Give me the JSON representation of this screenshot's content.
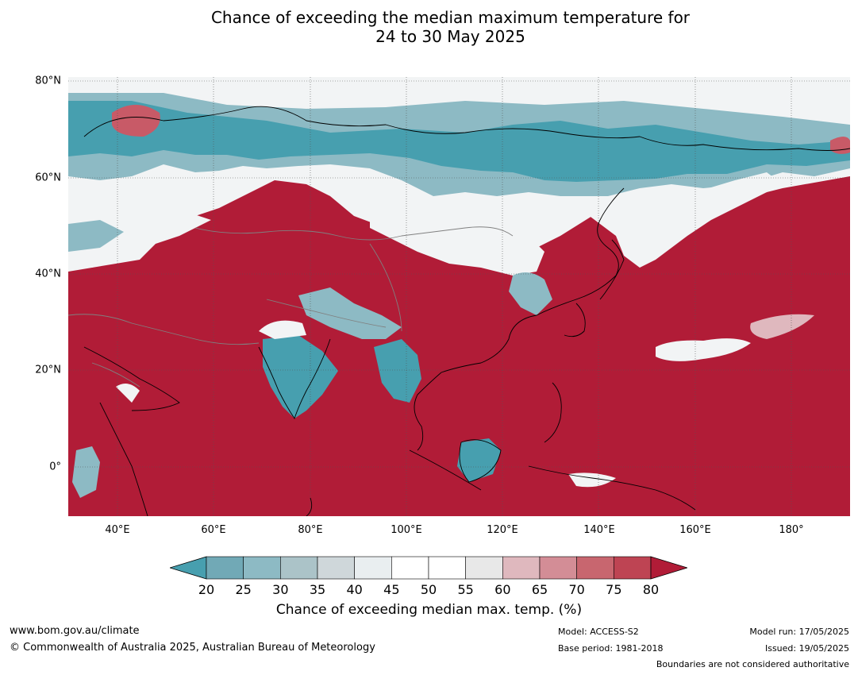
{
  "title": {
    "line1": "Chance of exceeding the median maximum temperature for",
    "line2": "24 to 30 May 2025"
  },
  "map": {
    "lat_labels": [
      "80°N",
      "60°N",
      "40°N",
      "20°N",
      "0°"
    ],
    "lon_labels": [
      "40°E",
      "60°E",
      "80°E",
      "100°E",
      "120°E",
      "140°E",
      "160°E",
      "180°"
    ],
    "colors": {
      "ocean_default": "#b11c37",
      "cool_strong": "#479faf",
      "cool_mid": "#8dbac4",
      "neutral": "#f2f4f5",
      "warm_light": "#dfb8be",
      "warm_mid": "#c85a67",
      "warm_strong": "#b11c37",
      "coastline": "#000000",
      "boundary": "#808080"
    }
  },
  "colorbar": {
    "ticks": [
      "20",
      "25",
      "30",
      "35",
      "40",
      "45",
      "50",
      "55",
      "60",
      "65",
      "70",
      "75",
      "80"
    ],
    "colors": [
      "#479faf",
      "#71a9b6",
      "#8dbac4",
      "#abc3c8",
      "#cfd7da",
      "#e9eef0",
      "#ffffff",
      "#ffffff",
      "#e8e8e8",
      "#dfb8be",
      "#d38d96",
      "#c8666f",
      "#be4453",
      "#b11c37"
    ],
    "label": "Chance of exceeding median max. temp. (%)"
  },
  "footer": {
    "url": "www.bom.gov.au/climate",
    "copyright": "© Commonwealth of Australia 2025, Australian Bureau of Meteorology",
    "model": "Model: ACCESS-S2",
    "base_period": "Base period: 1981-2018",
    "model_run": "Model run: 17/05/2025",
    "issued": "Issued: 19/05/2025",
    "boundaries": "Boundaries are not considered authoritative"
  }
}
